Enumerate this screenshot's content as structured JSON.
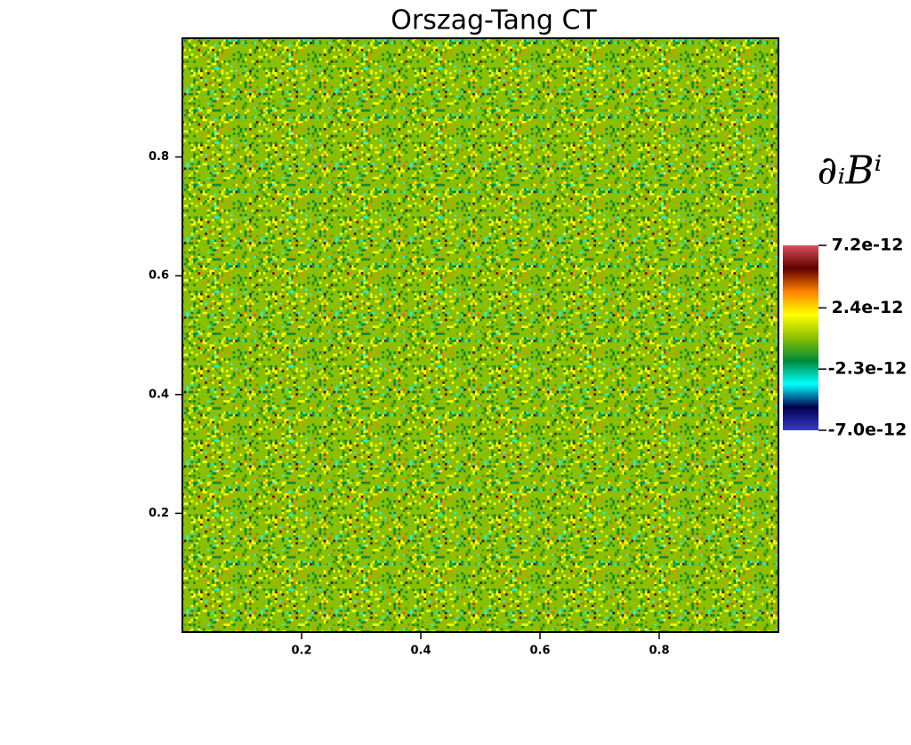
{
  "chart_data": {
    "type": "heatmap",
    "title": "Orszag-Tang CT",
    "xlim": [
      0,
      1
    ],
    "ylim": [
      0,
      1
    ],
    "xticks": [
      0.2,
      0.4,
      0.6,
      0.8
    ],
    "yticks": [
      0.2,
      0.4,
      0.6,
      0.8
    ],
    "colorbar": {
      "title": "∂ᵢBⁱ",
      "clim": [
        -7e-12,
        7.2e-12
      ],
      "ticks": [
        {
          "value": 7.2e-12,
          "label": "7.2e-12"
        },
        {
          "value": 2.4e-12,
          "label": "2.4e-12"
        },
        {
          "value": -2.3e-12,
          "label": "-2.3e-12"
        },
        {
          "value": -7e-12,
          "label": "-7.0e-12"
        }
      ],
      "colormap": [
        "#3a3ac8",
        "#000050",
        "#00ffff",
        "#008a3a",
        "#8cbf00",
        "#ffff00",
        "#ff8000",
        "#600000",
        "#d8505a"
      ]
    }
  }
}
